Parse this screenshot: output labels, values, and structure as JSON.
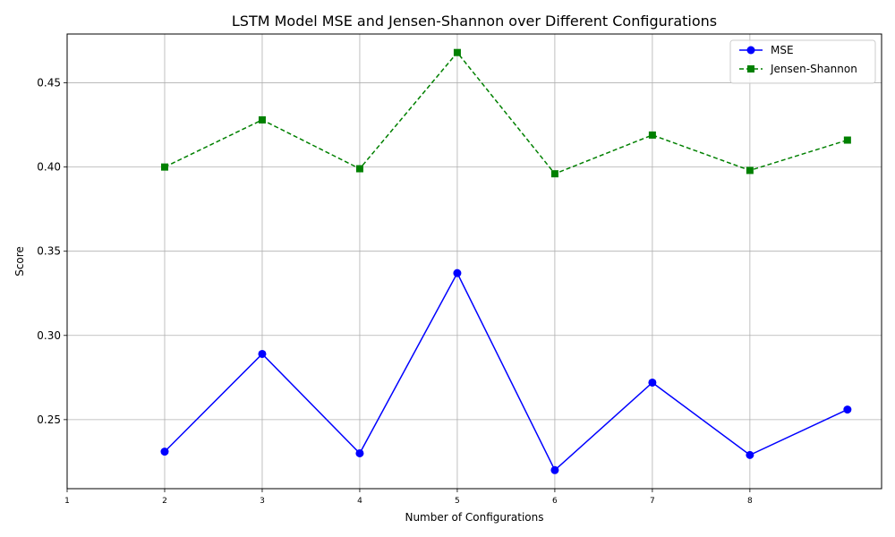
{
  "chart_data": {
    "type": "line",
    "title": "LSTM Model MSE and Jensen-Shannon over Different Configurations",
    "xlabel": "Number of Configurations",
    "ylabel": "Score",
    "x": [
      2,
      3,
      4,
      5,
      6,
      7,
      8,
      9
    ],
    "xticks": [
      "1",
      "2",
      "3",
      "4",
      "5",
      "6",
      "7",
      "8"
    ],
    "xlim": [
      1,
      9.35
    ],
    "ylim": [
      0.209,
      0.479
    ],
    "yticks": [
      "0.25",
      "0.30",
      "0.35",
      "0.40",
      "0.45"
    ],
    "grid": true,
    "legend_position": "top-right",
    "series": [
      {
        "name": "MSE",
        "values": [
          0.231,
          0.289,
          0.23,
          0.337,
          0.22,
          0.272,
          0.229,
          0.256
        ],
        "color": "#0000ff",
        "linestyle": "solid",
        "marker": "circle"
      },
      {
        "name": "Jensen-Shannon",
        "values": [
          0.4,
          0.428,
          0.399,
          0.468,
          0.396,
          0.419,
          0.398,
          0.416
        ],
        "color": "#008000",
        "linestyle": "dashed",
        "marker": "square"
      }
    ]
  }
}
